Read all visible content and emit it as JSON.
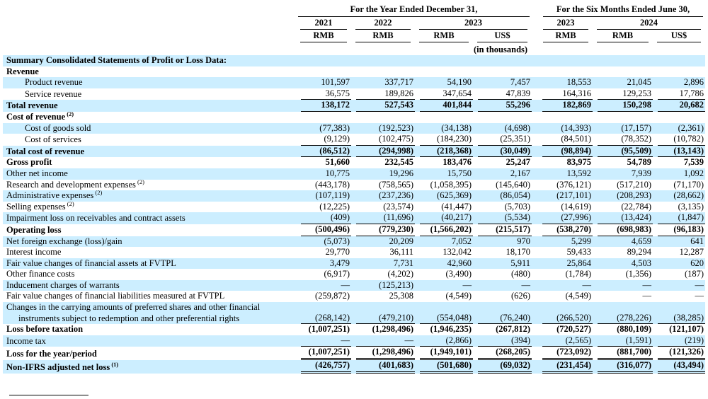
{
  "header": {
    "group1": "For the Year Ended December 31,",
    "group2": "For the Six Months Ended June 30,",
    "years": [
      "2021",
      "2022",
      "2023",
      "2023",
      "2024"
    ],
    "units": [
      "RMB",
      "RMB",
      "RMB",
      "US$",
      "RMB",
      "RMB",
      "US$"
    ],
    "note": "(in thousands)"
  },
  "rows": [
    {
      "label": "Summary Consolidated Statements of Profit or Loss Data:",
      "title": true,
      "bold": true,
      "shade": true
    },
    {
      "label": "Revenue",
      "bold": true,
      "shade": false,
      "values": [
        "",
        "",
        "",
        "",
        "",
        "",
        ""
      ]
    },
    {
      "label": "Product revenue",
      "indent": 1,
      "shade": true,
      "values": [
        "101,597",
        "337,717",
        "54,190",
        "7,457",
        "18,553",
        "21,045",
        "2,896"
      ]
    },
    {
      "label": "Service revenue",
      "indent": 1,
      "shade": false,
      "underline": "single",
      "values": [
        "36,575",
        "189,826",
        "347,654",
        "47,839",
        "164,316",
        "129,253",
        "17,786"
      ]
    },
    {
      "label": "Total revenue",
      "bold": true,
      "shade": true,
      "underline": "single",
      "values": [
        "138,172",
        "527,543",
        "401,844",
        "55,296",
        "182,869",
        "150,298",
        "20,682"
      ]
    },
    {
      "label": "Cost of revenue",
      "sup": "(2)",
      "bold": true,
      "shade": false,
      "values": [
        "",
        "",
        "",
        "",
        "",
        "",
        ""
      ]
    },
    {
      "label": "Cost of goods sold",
      "indent": 1,
      "shade": true,
      "values": [
        "(77,383)",
        "(192,523)",
        "(34,138)",
        "(4,698)",
        "(14,393)",
        "(17,157)",
        "(2,361)"
      ]
    },
    {
      "label": "Cost of services",
      "indent": 1,
      "shade": false,
      "underline": "single",
      "values": [
        "(9,129)",
        "(102,475)",
        "(184,230)",
        "(25,351)",
        "(84,501)",
        "(78,352)",
        "(10,782)"
      ]
    },
    {
      "label": "Total cost of revenue",
      "bold": true,
      "shade": true,
      "underline": "single",
      "values": [
        "(86,512)",
        "(294,998)",
        "(218,368)",
        "(30,049)",
        "(98,894)",
        "(95,509)",
        "(13,143)"
      ]
    },
    {
      "label": "Gross profit",
      "bold": true,
      "shade": false,
      "values": [
        "51,660",
        "232,545",
        "183,476",
        "25,247",
        "83,975",
        "54,789",
        "7,539"
      ]
    },
    {
      "label": "Other net income",
      "shade": true,
      "values": [
        "10,775",
        "19,296",
        "15,750",
        "2,167",
        "13,592",
        "7,939",
        "1,092"
      ]
    },
    {
      "label": "Research and development expenses",
      "sup": "(2)",
      "shade": false,
      "values": [
        "(443,178)",
        "(758,565)",
        "(1,058,395)",
        "(145,640)",
        "(376,121)",
        "(517,210)",
        "(71,170)"
      ]
    },
    {
      "label": "Administrative expenses",
      "sup": "(2)",
      "shade": true,
      "values": [
        "(107,119)",
        "(237,236)",
        "(625,369)",
        "(86,054)",
        "(217,101)",
        "(208,293)",
        "(28,662)"
      ]
    },
    {
      "label": "Selling expenses",
      "sup": "(2)",
      "shade": false,
      "values": [
        "(12,225)",
        "(23,574)",
        "(41,447)",
        "(5,703)",
        "(14,619)",
        "(22,784)",
        "(3,135)"
      ]
    },
    {
      "label": "Impairment loss on receivables and contract assets",
      "shade": true,
      "underline": "single",
      "values": [
        "(409)",
        "(11,696)",
        "(40,217)",
        "(5,534)",
        "(27,996)",
        "(13,424)",
        "(1,847)"
      ]
    },
    {
      "label": "Operating loss",
      "bold": true,
      "shade": false,
      "underline": "single",
      "values": [
        "(500,496)",
        "(779,230)",
        "(1,566,202)",
        "(215,517)",
        "(538,270)",
        "(698,983)",
        "(96,183)"
      ]
    },
    {
      "label": "Net foreign exchange (loss)/gain",
      "shade": true,
      "values": [
        "(5,073)",
        "20,209",
        "7,052",
        "970",
        "5,299",
        "4,659",
        "641"
      ]
    },
    {
      "label": "Interest income",
      "shade": false,
      "values": [
        "29,770",
        "36,111",
        "132,042",
        "18,170",
        "59,433",
        "89,294",
        "12,287"
      ]
    },
    {
      "label": "Fair value changes of financial assets at FVTPL",
      "shade": true,
      "values": [
        "3,479",
        "7,731",
        "42,960",
        "5,911",
        "25,864",
        "4,503",
        "620"
      ]
    },
    {
      "label": "Other finance costs",
      "shade": false,
      "values": [
        "(6,917)",
        "(4,202)",
        "(3,490)",
        "(480)",
        "(1,784)",
        "(1,356)",
        "(187)"
      ]
    },
    {
      "label": "Inducement charges of warrants",
      "shade": true,
      "values": [
        "—",
        "(125,213)",
        "—",
        "—",
        "—",
        "—",
        "—"
      ]
    },
    {
      "label": "Fair value changes of financial liabilities measured at FVTPL",
      "shade": false,
      "values": [
        "(259,872)",
        "25,308",
        "(4,549)",
        "(626)",
        "(4,549)",
        "—",
        "—"
      ]
    },
    {
      "label": "Changes in the carrying amounts of preferred shares and other financial",
      "label2": "instruments subject to redemption and other preferential rights",
      "shade": true,
      "underline": "single",
      "values": [
        "(268,142)",
        "(479,210)",
        "(554,048)",
        "(76,240)",
        "(266,520)",
        "(278,226)",
        "(38,285)"
      ]
    },
    {
      "label": "Loss before taxation",
      "bold": true,
      "shade": false,
      "values": [
        "(1,007,251)",
        "(1,298,496)",
        "(1,946,235)",
        "(267,812)",
        "(720,527)",
        "(880,109)",
        "(121,107)"
      ]
    },
    {
      "label": "Income tax",
      "shade": true,
      "underline": "single",
      "values": [
        "—",
        "—",
        "(2,866)",
        "(394)",
        "(2,565)",
        "(1,591)",
        "(219)"
      ]
    },
    {
      "label": "Loss for the year/period",
      "bold": true,
      "shade": false,
      "underline": "double",
      "values": [
        "(1,007,251)",
        "(1,298,496)",
        "(1,949,101)",
        "(268,205)",
        "(723,092)",
        "(881,700)",
        "(121,326)"
      ]
    },
    {
      "label": "Non-IFRS adjusted net loss",
      "sup": "(1)",
      "bold": true,
      "shade": true,
      "underline": "double",
      "values": [
        "(426,757)",
        "(401,683)",
        "(501,680)",
        "(69,032)",
        "(231,454)",
        "(316,077)",
        "(43,494)"
      ]
    }
  ]
}
